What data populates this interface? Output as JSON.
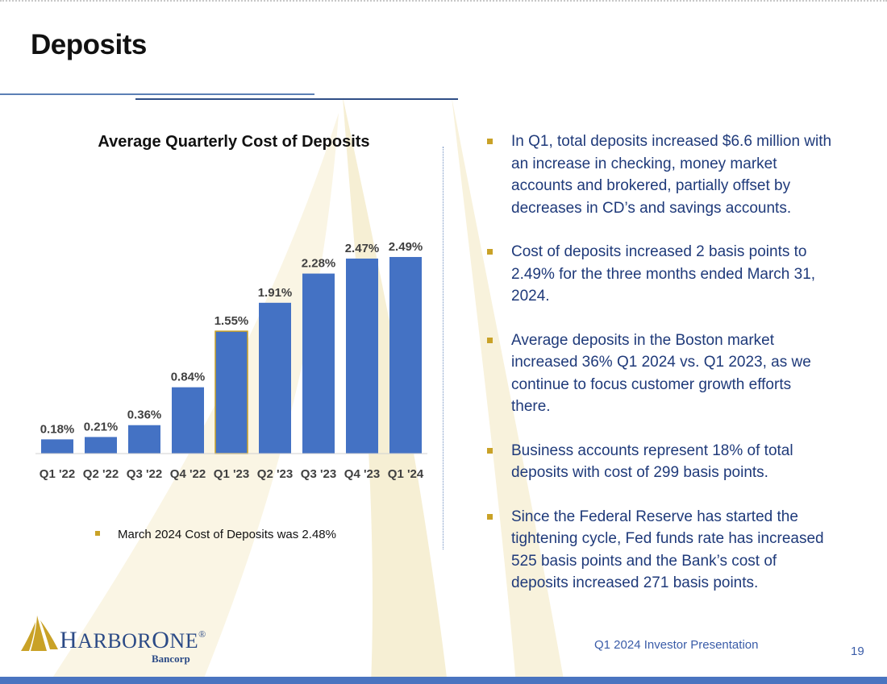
{
  "page": {
    "title": "Deposits",
    "footer_text": "Q1 2024 Investor Presentation",
    "page_number": "19"
  },
  "colors": {
    "bar": "#4472c4",
    "bar_highlight_border": "#c9a227",
    "bullet": "#c9a227",
    "bullet_text": "#1f3a7a",
    "footer_bar": "#4a74c0"
  },
  "chart_data": {
    "type": "bar",
    "title": "Average Quarterly Cost of Deposits",
    "xlabel": "",
    "ylabel": "",
    "categories": [
      "Q1 '22",
      "Q2 '22",
      "Q3 '22",
      "Q4 '22",
      "Q1 '23",
      "Q2 '23",
      "Q3 '23",
      "Q4 '23",
      "Q1 '24"
    ],
    "values": [
      0.18,
      0.21,
      0.36,
      0.84,
      1.55,
      1.91,
      2.28,
      2.47,
      2.49
    ],
    "value_labels": [
      "0.18%",
      "0.21%",
      "0.36%",
      "0.84%",
      "1.55%",
      "1.91%",
      "2.28%",
      "2.47%",
      "2.49%"
    ],
    "highlighted_category": "Q1 '23",
    "ylim": [
      0,
      2.5
    ],
    "grid": false,
    "legend": "none"
  },
  "chart_note": "March 2024 Cost of Deposits was 2.48%",
  "bullets": [
    "In Q1, total deposits increased $6.6 million with an increase in checking, money market accounts and brokered, partially offset by decreases in CD’s and savings accounts.",
    "Cost of deposits increased 2 basis points to 2.49% for the three months ended March 31, 2024.",
    "Average deposits in the Boston market increased 36% Q1 2024 vs. Q1 2023, as we continue to focus customer growth efforts there.",
    "Business accounts represent 18% of total deposits with cost of 299 basis points.",
    "Since the Federal Reserve has started the tightening cycle, Fed funds rate has increased 525 basis points and the Bank’s cost of deposits increased 271 basis points."
  ],
  "logo": {
    "name_h": "H",
    "name_arbor": "ARBOR",
    "name_o": "O",
    "name_ne": "NE",
    "registered": "®",
    "sub": "Bancorp"
  }
}
